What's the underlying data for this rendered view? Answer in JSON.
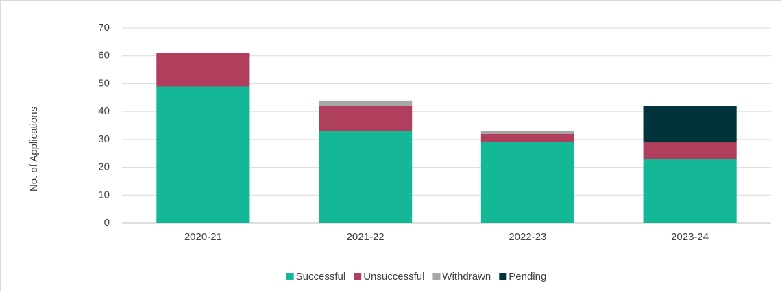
{
  "chart_data": {
    "type": "stacked_bar",
    "y_label": "No. of Applications",
    "categories": [
      "2020-21",
      "2021-22",
      "2022-23",
      "2023-24"
    ],
    "series": [
      {
        "name": "Successful",
        "color": "#14b897",
        "values": [
          49,
          33,
          29,
          23
        ]
      },
      {
        "name": "Unsuccessful",
        "color": "#b03f5e",
        "values": [
          12,
          9,
          3,
          6
        ]
      },
      {
        "name": "Withdrawn",
        "color": "#a6a6a6",
        "values": [
          0,
          2,
          1,
          0
        ]
      },
      {
        "name": "Pending",
        "color": "#00343a",
        "values": [
          0,
          0,
          0,
          13
        ]
      }
    ],
    "ylim": [
      0,
      70
    ],
    "yticks": [
      0,
      10,
      20,
      30,
      40,
      50,
      60,
      70
    ],
    "grid": true,
    "legend": "bottom"
  }
}
